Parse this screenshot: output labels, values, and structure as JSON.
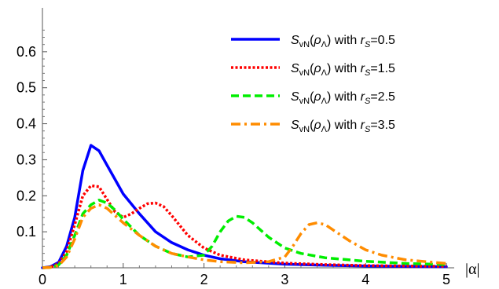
{
  "chart_data": {
    "type": "line",
    "xlabel": "|α|",
    "ylabel": "",
    "xlim": [
      0,
      5
    ],
    "ylim": [
      0,
      0.7
    ],
    "x_ticks": [
      "0",
      "1",
      "2",
      "3",
      "4",
      "5"
    ],
    "y_ticks": [
      "0.1",
      "0.2",
      "0.3",
      "0.4",
      "0.5",
      "0.6"
    ],
    "legend_position": "top-right",
    "series": [
      {
        "name": "SvN(ρΛ) with rS=0.5",
        "legend_parts": {
          "s": "S",
          "sub1": "vN",
          "mid1": "(",
          "rho": "ρ",
          "sub2": "Λ",
          "mid2": ") with ",
          "r": "r",
          "sub3": "S",
          "val": "=0.5"
        },
        "color": "#0000ff",
        "dash": "solid",
        "x": [
          0,
          0.1,
          0.2,
          0.3,
          0.4,
          0.5,
          0.6,
          0.7,
          0.8,
          0.9,
          1.0,
          1.2,
          1.4,
          1.6,
          1.8,
          2.0,
          2.2,
          2.5,
          3.0,
          3.5,
          4.0,
          4.5,
          5.0
        ],
        "y": [
          0,
          0.003,
          0.015,
          0.06,
          0.14,
          0.27,
          0.34,
          0.325,
          0.285,
          0.245,
          0.205,
          0.15,
          0.1,
          0.07,
          0.05,
          0.035,
          0.025,
          0.017,
          0.01,
          0.007,
          0.005,
          0.004,
          0.003
        ]
      },
      {
        "name": "SvN(ρΛ) with rS=1.5",
        "legend_parts": {
          "s": "S",
          "sub1": "vN",
          "mid1": "(",
          "rho": "ρ",
          "sub2": "Λ",
          "mid2": ") with ",
          "r": "r",
          "sub3": "S",
          "val": "=1.5"
        },
        "color": "#ff0000",
        "dash": "dotted",
        "x": [
          0,
          0.1,
          0.2,
          0.3,
          0.4,
          0.5,
          0.6,
          0.7,
          0.8,
          0.9,
          1.0,
          1.1,
          1.2,
          1.3,
          1.4,
          1.5,
          1.6,
          1.8,
          2.0,
          2.2,
          2.5,
          3.0,
          3.5,
          4.0,
          4.5,
          5.0
        ],
        "y": [
          0,
          0.002,
          0.012,
          0.045,
          0.12,
          0.2,
          0.228,
          0.225,
          0.19,
          0.155,
          0.14,
          0.15,
          0.165,
          0.178,
          0.18,
          0.17,
          0.145,
          0.09,
          0.055,
          0.035,
          0.022,
          0.013,
          0.009,
          0.006,
          0.005,
          0.004
        ]
      },
      {
        "name": "SvN(ρΛ) with rS=2.5",
        "legend_parts": {
          "s": "S",
          "sub1": "vN",
          "mid1": "(",
          "rho": "ρ",
          "sub2": "Λ",
          "mid2": ") with ",
          "r": "r",
          "sub3": "S",
          "val": "=2.5"
        },
        "color": "#00ee00",
        "dash": "dashed",
        "x": [
          0,
          0.1,
          0.2,
          0.3,
          0.4,
          0.5,
          0.6,
          0.7,
          0.8,
          0.9,
          1.0,
          1.2,
          1.4,
          1.6,
          1.8,
          2.0,
          2.1,
          2.2,
          2.3,
          2.4,
          2.5,
          2.6,
          2.8,
          3.0,
          3.2,
          3.5,
          4.0,
          4.5,
          5.0
        ],
        "y": [
          0,
          0.001,
          0.008,
          0.035,
          0.09,
          0.15,
          0.175,
          0.188,
          0.18,
          0.16,
          0.135,
          0.09,
          0.06,
          0.04,
          0.03,
          0.035,
          0.06,
          0.1,
          0.13,
          0.143,
          0.14,
          0.125,
          0.085,
          0.055,
          0.04,
          0.028,
          0.018,
          0.012,
          0.009
        ]
      },
      {
        "name": "SvN(ρΛ) with rS=3.5",
        "legend_parts": {
          "s": "S",
          "sub1": "vN",
          "mid1": "(",
          "rho": "ρ",
          "sub2": "Λ",
          "mid2": ") with ",
          "r": "r",
          "sub3": "S",
          "val": "=3.5"
        },
        "color": "#ff8c00",
        "dash": "dashdot",
        "x": [
          0,
          0.1,
          0.2,
          0.3,
          0.4,
          0.5,
          0.6,
          0.7,
          0.8,
          0.9,
          1.0,
          1.2,
          1.4,
          1.6,
          1.8,
          2.0,
          2.2,
          2.5,
          2.8,
          3.0,
          3.1,
          3.2,
          3.3,
          3.4,
          3.5,
          3.6,
          3.8,
          4.0,
          4.2,
          4.5,
          5.0
        ],
        "y": [
          0,
          0.001,
          0.006,
          0.03,
          0.08,
          0.14,
          0.165,
          0.175,
          0.165,
          0.145,
          0.125,
          0.09,
          0.06,
          0.04,
          0.03,
          0.022,
          0.017,
          0.014,
          0.017,
          0.03,
          0.06,
          0.095,
          0.12,
          0.125,
          0.12,
          0.105,
          0.075,
          0.05,
          0.035,
          0.022,
          0.012
        ]
      }
    ]
  }
}
